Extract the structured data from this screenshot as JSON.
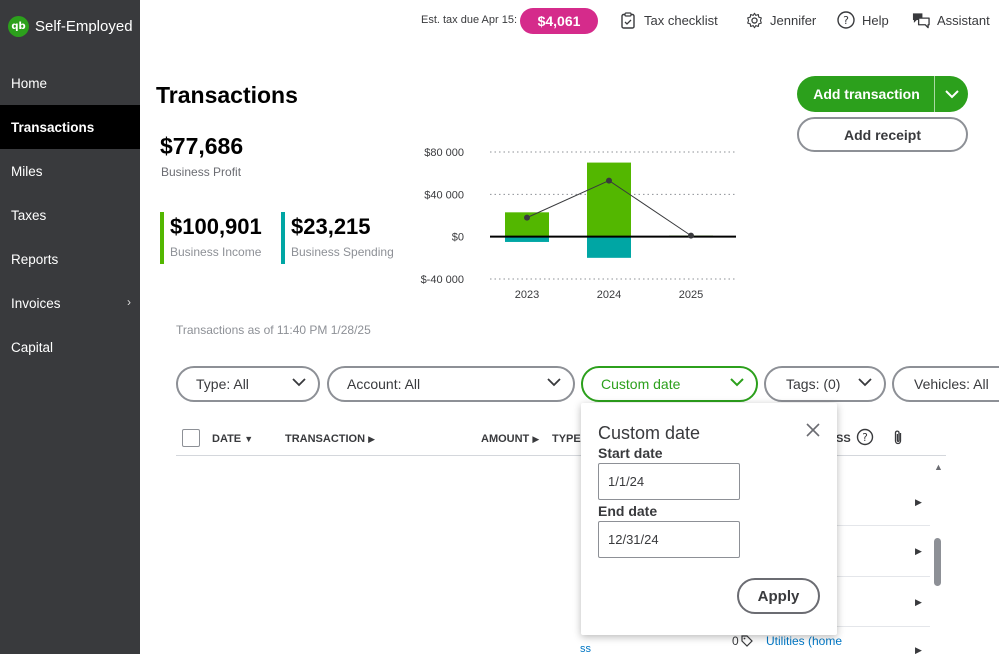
{
  "app": {
    "brand_logo": "qb",
    "brand_name": "Self-Employed"
  },
  "sidebar": {
    "items": [
      {
        "label": "Home",
        "active": false
      },
      {
        "label": "Transactions",
        "active": true
      },
      {
        "label": "Miles",
        "active": false
      },
      {
        "label": "Taxes",
        "active": false
      },
      {
        "label": "Reports",
        "active": false
      },
      {
        "label": "Invoices",
        "active": false,
        "has_submenu": true
      },
      {
        "label": "Capital",
        "active": false
      }
    ]
  },
  "header": {
    "est_tax_label": "Est. tax due Apr 15:",
    "est_tax_value": "$4,061",
    "tax_checklist": "Tax checklist",
    "user": "Jennifer",
    "help": "Help",
    "assistant": "Assistant"
  },
  "page": {
    "title": "Transactions",
    "add_transaction": "Add transaction",
    "add_receipt": "Add receipt",
    "as_of": "Transactions as of 11:40 PM 1/28/25"
  },
  "summary": {
    "profit_value": "$77,686",
    "profit_label": "Business Profit",
    "income_value": "$100,901",
    "income_label": "Business Income",
    "spending_value": "$23,215",
    "spending_label": "Business Spending"
  },
  "chart_data": {
    "type": "bar",
    "categories": [
      "2023",
      "2024",
      "2025"
    ],
    "y_ticks": [
      "$80 000",
      "$40 000",
      "$0",
      "$-40 000"
    ],
    "ylim": [
      -40000,
      80000
    ],
    "series": [
      {
        "values": [
          23000,
          70000,
          1000
        ],
        "color": "#53b700"
      },
      {
        "values": [
          -5000,
          -20000,
          0
        ],
        "color": "#00a6a4"
      }
    ],
    "profit_line": [
      18000,
      53000,
      1000
    ],
    "grid": true
  },
  "filters": {
    "type": "Type: All",
    "account": "Account: All",
    "date": "Custom date",
    "tags": "Tags: (0)",
    "vehicles": "Vehicles: All"
  },
  "table": {
    "headers": {
      "date": "DATE",
      "transaction": "TRANSACTION",
      "amount": "AMOUNT",
      "type": "TYPE",
      "business_frag": "SS"
    },
    "row_receipt_count": "0",
    "row_category": "Utilities (home",
    "row_fragment": "ss"
  },
  "date_popup": {
    "title": "Custom date",
    "start_label": "Start date",
    "start_value": "1/1/24",
    "end_label": "End date",
    "end_value": "12/31/24",
    "apply": "Apply"
  }
}
